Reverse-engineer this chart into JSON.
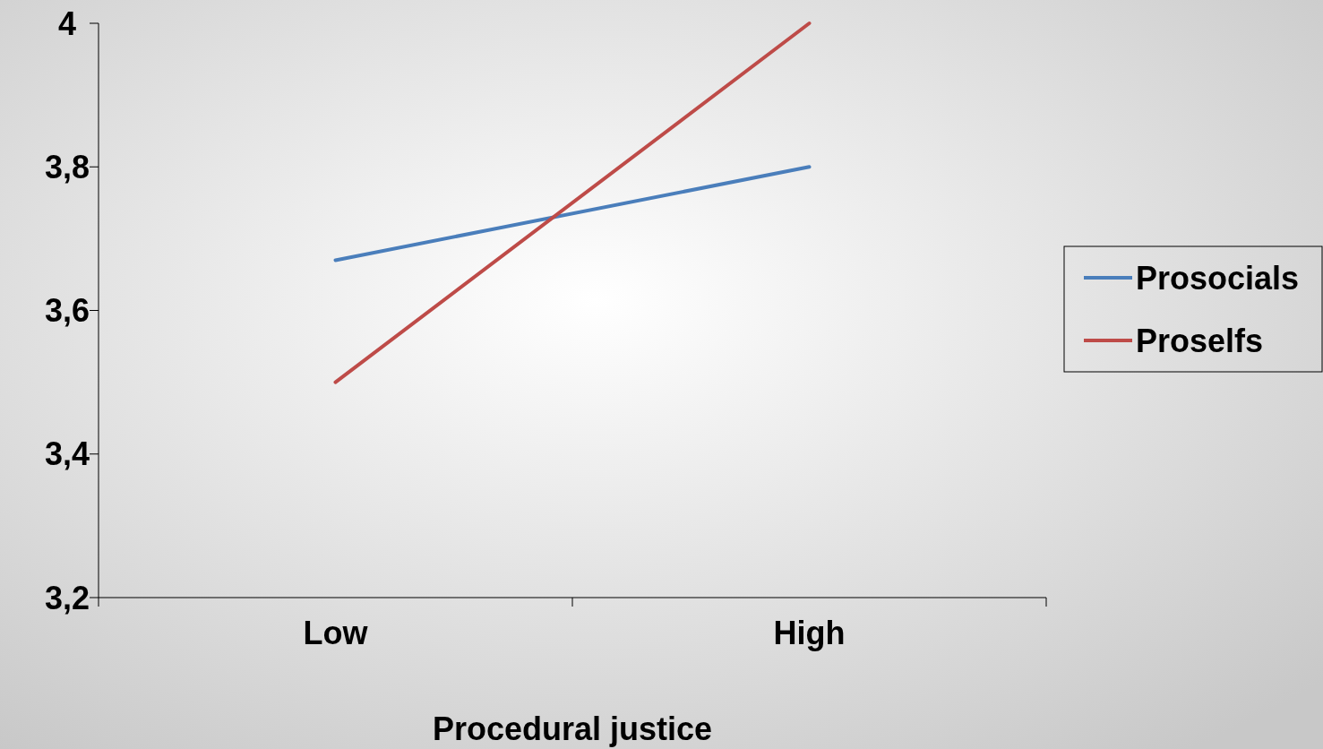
{
  "chart_data": {
    "type": "line",
    "xlabel": "Procedural justice",
    "categories": [
      "Low",
      "High"
    ],
    "series": [
      {
        "name": "Prosocials",
        "color": "#4a7ebb",
        "values": [
          3.67,
          3.8
        ]
      },
      {
        "name": "Proselfs",
        "color": "#be4b48",
        "values": [
          3.5,
          4.0
        ]
      }
    ],
    "ylim": [
      3.2,
      4.0
    ],
    "yticks": [
      {
        "value": 3.2,
        "label": "3,2"
      },
      {
        "value": 3.4,
        "label": "3,4"
      },
      {
        "value": 3.6,
        "label": "3,6"
      },
      {
        "value": 3.8,
        "label": "3,8"
      },
      {
        "value": 4.0,
        "label": "4"
      }
    ],
    "legend": "right",
    "grid": false
  }
}
